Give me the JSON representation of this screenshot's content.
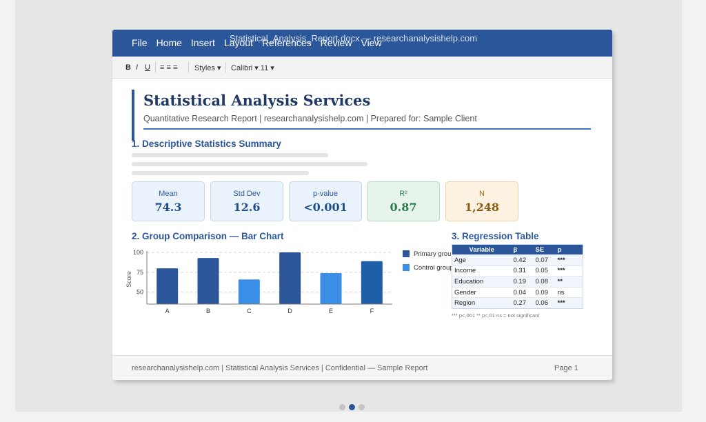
{
  "window": {
    "title": "Statistical_Analysis_Report.docx — researchanalysishelp.com",
    "menu": [
      "File",
      "Home",
      "Insert",
      "Layout",
      "References",
      "Review",
      "View"
    ]
  },
  "toolbar": {
    "bold": "B",
    "italic": "I",
    "underline": "U",
    "align": "≡ ≡ ≡",
    "styles": "Styles ▾",
    "font": "Calibri ▾ 11 ▾"
  },
  "doc": {
    "title": "Statistical Analysis Services",
    "subtitle": "Quantitative Research Report | researchanalysishelp.com | Prepared for: Sample Client"
  },
  "sections": {
    "s1": "1. Descriptive Statistics Summary",
    "s2": "2. Group Comparison — Bar Chart",
    "s3": "3. Regression Table"
  },
  "stats": [
    {
      "label": "Mean",
      "value": "74.3",
      "tone": "blue"
    },
    {
      "label": "Std Dev",
      "value": "12.6",
      "tone": "blue"
    },
    {
      "label": "p-value",
      "value": "<0.001",
      "tone": "blue"
    },
    {
      "label": "R²",
      "value": "0.87",
      "tone": "green"
    },
    {
      "label": "N",
      "value": "1,248",
      "tone": "orange"
    }
  ],
  "chart_data": {
    "type": "bar",
    "categories": [
      "A",
      "B",
      "C",
      "D",
      "E",
      "F"
    ],
    "values": [
      80,
      93,
      66,
      100,
      74,
      89
    ],
    "bar_colors": [
      "#2b579a",
      "#2b579a",
      "#3a8ee6",
      "#2b579a",
      "#3a8ee6",
      "#1f5fa8"
    ],
    "ylabel": "Score",
    "yticks": [
      50,
      75,
      100
    ],
    "ylim": [
      35,
      100
    ],
    "grid": true,
    "legend": [
      {
        "name": "Primary group",
        "color": "#2b579a"
      },
      {
        "name": "Control group",
        "color": "#3a8ee6"
      }
    ]
  },
  "regression": {
    "headers": [
      "Variable",
      "β",
      "SE",
      "p"
    ],
    "rows": [
      {
        "variable": "Age",
        "beta": "0.42",
        "se": "0.07",
        "p": "***",
        "sig": "high"
      },
      {
        "variable": "Income",
        "beta": "0.31",
        "se": "0.05",
        "p": "***",
        "sig": "high"
      },
      {
        "variable": "Education",
        "beta": "0.19",
        "se": "0.08",
        "p": "**",
        "sig": "mid"
      },
      {
        "variable": "Gender",
        "beta": "0.04",
        "se": "0.09",
        "p": "ns",
        "sig": "ns"
      },
      {
        "variable": "Region",
        "beta": "0.27",
        "se": "0.06",
        "p": "***",
        "sig": "high"
      }
    ],
    "note": "*** p<.001 ** p<.01 ns = not significant"
  },
  "footer": {
    "left": "researchanalysishelp.com | Statistical Analysis Services | Confidential — Sample Report",
    "right": "Page 1"
  },
  "pager": {
    "count": 3,
    "active": 1,
    "active_color": "#2b579a",
    "inactive_color": "#c4c4c4"
  }
}
